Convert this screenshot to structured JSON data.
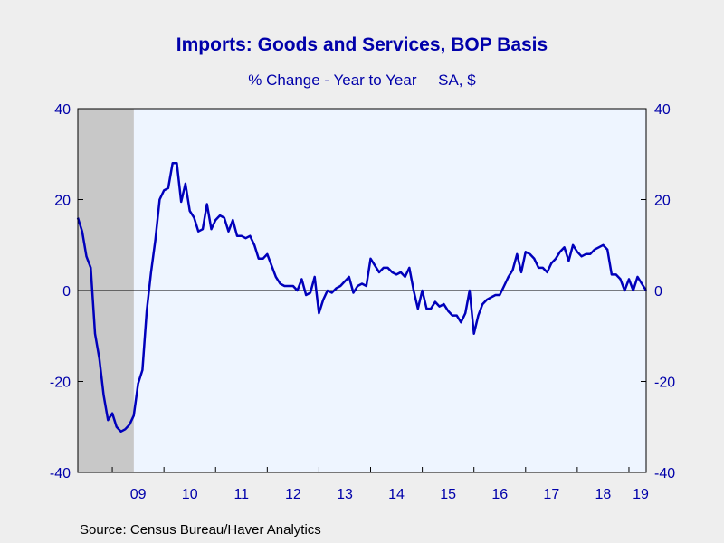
{
  "chart_data": {
    "type": "line",
    "title": "Imports: Goods and Services, BOP Basis",
    "subtitle": "% Change - Year to Year     SA, $",
    "source": "Source:  Census Bureau/Haver Analytics",
    "ylim": [
      -40,
      40
    ],
    "yticks": [
      "40",
      "20",
      "0",
      "-20",
      "-40"
    ],
    "xlim": [
      "2008-05",
      "2019-05"
    ],
    "xtick_labels": [
      "09",
      "10",
      "11",
      "12",
      "13",
      "14",
      "15",
      "16",
      "17",
      "18",
      "19"
    ],
    "recession": {
      "start": "2008-05",
      "end": "2009-06"
    },
    "colors": {
      "line": "#0000bb",
      "text": "#0000aa",
      "plot_bg": "#eef5ff",
      "recession": "#c8c8c8",
      "page_bg": "#eeeeee"
    },
    "series": [
      {
        "start": "2008-05",
        "frequency": "monthly",
        "values": [
          16,
          13,
          7.5,
          5,
          -9.5,
          -15,
          -23,
          -28.5,
          -27,
          -30,
          -31,
          -30.5,
          -29.5,
          -27.5,
          -20.5,
          -17.5,
          -4.5,
          4,
          11,
          20,
          22,
          22.5,
          28,
          28,
          19.5,
          23.5,
          17.5,
          16,
          13,
          13.5,
          19,
          13.5,
          15.5,
          16.5,
          16,
          13,
          15.5,
          12,
          12,
          11.5,
          12,
          10,
          7,
          7,
          8,
          5.5,
          3,
          1.5,
          1,
          1,
          1,
          0,
          2.5,
          -1,
          -0.5,
          3,
          -5,
          -2,
          0,
          -0.5,
          0.5,
          1,
          2,
          3,
          -0.5,
          1,
          1.5,
          1,
          7,
          5.5,
          4,
          5,
          5,
          4,
          3.5,
          4,
          3,
          5,
          0,
          -4,
          0,
          -4,
          -4,
          -2.5,
          -3.5,
          -3,
          -4.5,
          -5.5,
          -5.5,
          -7,
          -5,
          0,
          -9.5,
          -5.5,
          -3,
          -2,
          -1.5,
          -1,
          -1,
          1,
          3,
          4.5,
          8,
          4,
          8.5,
          8,
          7,
          5,
          5,
          4,
          6,
          7,
          8.5,
          9.5,
          6.5,
          10,
          8.5,
          7.5,
          8,
          8,
          9,
          9.5,
          10,
          9,
          3.5,
          3.5,
          2.5,
          0,
          2.5,
          0,
          3,
          1.5,
          0
        ]
      }
    ]
  }
}
